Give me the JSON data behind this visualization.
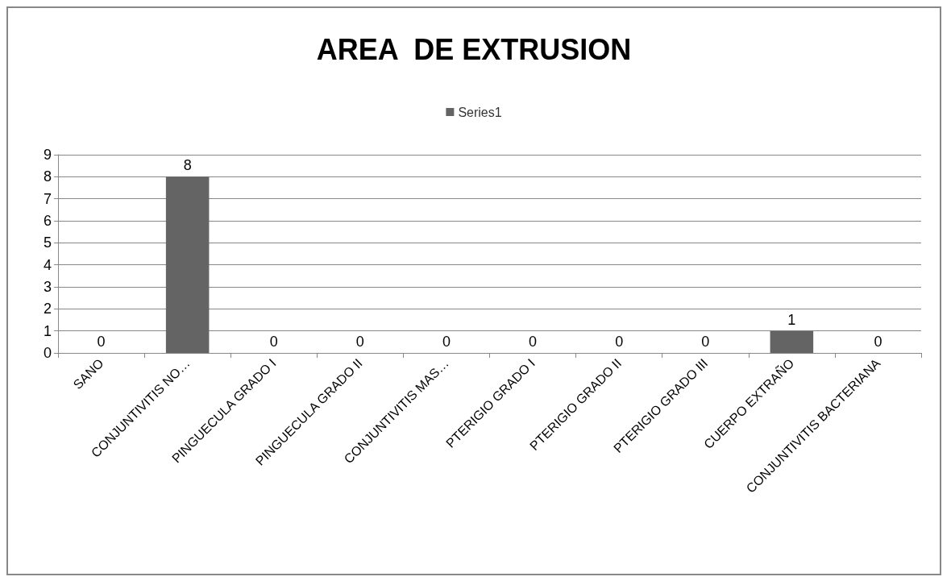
{
  "chart_data": {
    "type": "bar",
    "title": "AREA  DE EXTRUSION",
    "categories": [
      "SANO",
      "CONJUNTIVITIS NO…",
      "PINGUECULA GRADO I",
      "PINGUECULA GRADO II",
      "CONJUNTIVITIS MAS…",
      "PTERIGIO GRADO I",
      "PTERIGIO GRADO II",
      "PTERIGIO GRADO III",
      "CUERPO EXTRAÑO",
      "CONJUNTIVITIS BACTERIANA"
    ],
    "series": [
      {
        "name": "Series1",
        "color": "#646464",
        "values": [
          0,
          8,
          0,
          0,
          0,
          0,
          0,
          0,
          1,
          0
        ]
      }
    ],
    "ylim": [
      0,
      9
    ],
    "yticks": [
      0,
      1,
      2,
      3,
      4,
      5,
      6,
      7,
      8,
      9
    ],
    "grid": "y",
    "legend": "top",
    "data_labels": true
  }
}
